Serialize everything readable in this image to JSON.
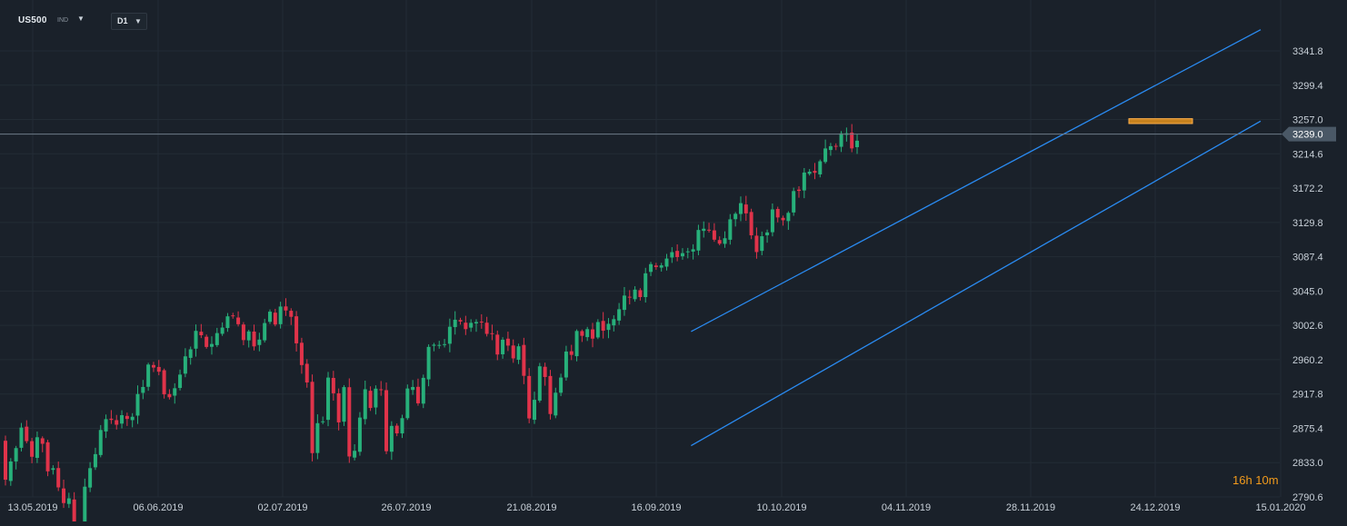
{
  "instrument": {
    "symbol": "US500",
    "type": "IND"
  },
  "timeframe": {
    "label": "D1"
  },
  "countdown": "16h 10m",
  "colors": {
    "background": "#1a212a",
    "grid": "#232c35",
    "up": "#27b07a",
    "down": "#e0334a",
    "channel": "#2a8bf2",
    "highlight": "#f29b1c",
    "price_line": "#6e7c89",
    "price_tag_bg": "#4a5866",
    "axis_text": "#c9d1d9"
  },
  "price_axis": {
    "min": 2790.6,
    "max": 3350.0,
    "ticks": [
      "3341.8",
      "3299.4",
      "3257.0",
      "3214.6",
      "3172.2",
      "3129.8",
      "3087.4",
      "3045.0",
      "3002.6",
      "2960.2",
      "2917.8",
      "2875.4",
      "2833.0",
      "2790.6"
    ]
  },
  "current_price": {
    "label": "3239.0",
    "value": 3239.0
  },
  "date_axis": {
    "labels": [
      "13.05.2019",
      "06.06.2019",
      "02.07.2019",
      "26.07.2019",
      "21.08.2019",
      "16.09.2019",
      "10.10.2019",
      "04.11.2019",
      "28.11.2019",
      "24.12.2019",
      "15.01.2020"
    ]
  },
  "chart_data": {
    "type": "candlestick",
    "series_closes": [
      2811.87,
      2834.41,
      2850.96,
      2876.32,
      2859.53,
      2840.23,
      2864.36,
      2856.27,
      2822.24,
      2826.06,
      2802.39,
      2783.02,
      2788.86,
      2752.06,
      2744.45,
      2803.27,
      2826.15,
      2843.49,
      2873.34,
      2886.73,
      2885.72,
      2879.84,
      2891.64,
      2886.98,
      2889.67,
      2917.75,
      2926.46,
      2954.18,
      2950.46,
      2945.35,
      2917.38,
      2913.78,
      2924.92,
      2941.76,
      2964.33,
      2973.01,
      2995.82,
      2990.41,
      2975.95,
      2979.63,
      2993.07,
      2999.91,
      3013.77,
      3014.3,
      3004.04,
      2984.42,
      2995.11,
      2976.61,
      2985.03,
      3005.47,
      3019.56,
      3003.67,
      3025.86,
      3020.97,
      3013.18,
      2980.38,
      2953.56,
      2932.05,
      2844.74,
      2881.77,
      2883.98,
      2938.09,
      2918.65,
      2882.7,
      2926.32,
      2840.6,
      2847.6,
      2888.68,
      2923.65,
      2900.51,
      2924.43,
      2922.95,
      2847.11,
      2878.38,
      2869.16,
      2887.94,
      2924.58,
      2926.46,
      2906.27,
      2937.78,
      2976.0,
      2978.71,
      2978.43,
      2979.39,
      3000.93,
      3009.57,
      3007.39,
      2997.96,
      3005.7,
      3006.73,
      3006.79,
      2992.07,
      2991.78,
      2966.6,
      2984.87,
      2977.62,
      2961.79,
      2976.74,
      2940.25,
      2887.61,
      2910.63,
      2952.01,
      2938.79,
      2893.06,
      2919.4,
      2938.13,
      2970.27,
      2966.15,
      2995.68,
      2989.69,
      2997.95,
      2986.2,
      3006.72,
      2995.99,
      3004.52,
      3010.29,
      3022.55,
      3039.42,
      3036.89,
      3046.77,
      3037.56,
      3066.91,
      3078.27,
      3074.62,
      3076.78,
      3085.18,
      3093.08,
      3087.01,
      3091.84,
      3094.04,
      3096.63,
      3120.46,
      3122.03,
      3120.18,
      3108.46,
      3103.54,
      3110.29,
      3133.64,
      3140.52,
      3153.63,
      3140.98,
      3113.87,
      3093.2,
      3112.76,
      3117.43,
      3145.91,
      3135.96,
      3132.52,
      3141.63,
      3168.57,
      3168.8,
      3191.45,
      3192.52,
      3191.14,
      3205.37,
      3221.22,
      3224.01,
      3223.38,
      3239.91,
      3240.02,
      3221.29,
      3230.78
    ],
    "channel_upper": {
      "start": {
        "date": "03.10.2019",
        "price": 2995.0
      },
      "end": {
        "date": "15.01.2020",
        "price": 3368.0
      }
    },
    "channel_lower": {
      "start": {
        "date": "03.10.2019",
        "price": 2854.0
      },
      "end": {
        "date": "15.01.2020",
        "price": 3255.0
      }
    },
    "highlight_zone": {
      "price_top": 3258.0,
      "price_bottom": 3252.0
    }
  }
}
